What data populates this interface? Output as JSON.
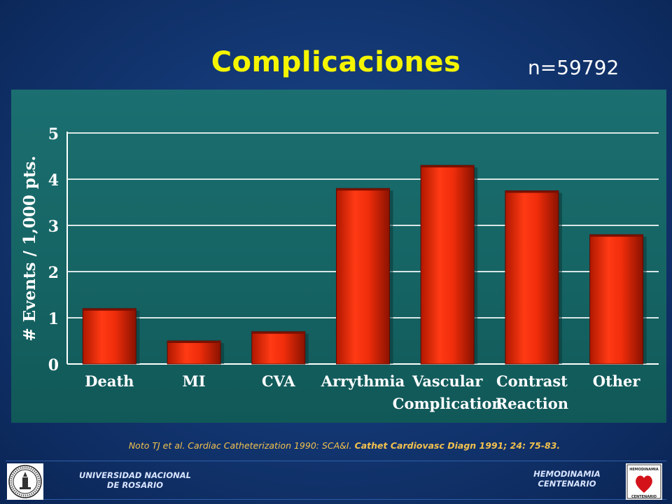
{
  "slide": {
    "title": "Complicaciones",
    "n_label": "n=59792"
  },
  "chart_data": {
    "type": "bar",
    "categories": [
      "Death",
      "MI",
      "CVA",
      "Arrythmia",
      "Vascular",
      "Contrast",
      "Other"
    ],
    "category_sublabels": [
      "",
      "",
      "",
      "",
      "Complication",
      "Reaction",
      ""
    ],
    "values": [
      1.2,
      0.5,
      0.7,
      3.8,
      4.3,
      3.75,
      2.8
    ],
    "ylabel": "# Events / 1,000 pts.",
    "yticks": [
      0,
      1,
      2,
      3,
      4,
      5
    ],
    "ylim": [
      0,
      5
    ],
    "grid": true,
    "bar_color": "#e02a0c",
    "background_color": "#176868"
  },
  "citation": {
    "part1": "Noto TJ et al. Cardiac Catheterization 1990: SCA&I. ",
    "part2": "Cathet Cardiovasc Diagn 1991; 24: 75-83."
  },
  "footer": {
    "left_line1": "UNIVERSIDAD NACIONAL",
    "left_line2": "DE ROSARIO",
    "right_line1": "HEMODINAMIA",
    "right_line2": "CENTENARIO",
    "right_logo_top": "HEMODINAMIA",
    "right_logo_bottom": "CENTENARIO"
  }
}
